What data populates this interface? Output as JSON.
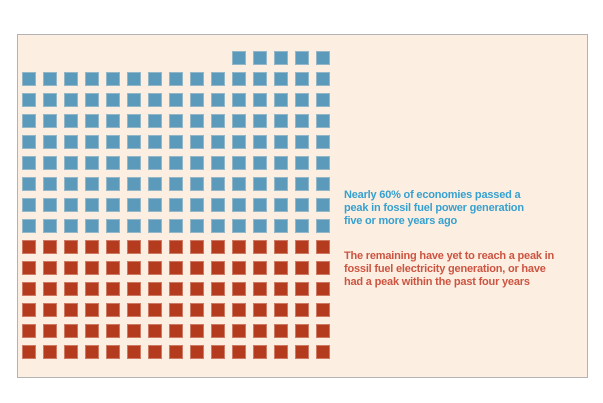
{
  "panel": {
    "background_color": "#FCEFE2",
    "border_color": "#B3B3B3"
  },
  "chart_data": {
    "type": "waffle",
    "title": "",
    "unit": "economies",
    "grid": {
      "columns": 15,
      "rows": 15,
      "total_units": 215
    },
    "series": [
      {
        "name": "passed-peak-5plus-years-ago",
        "count": 125,
        "share_label": "Nearly 60%",
        "color": "#5C9ABB"
      },
      {
        "name": "remaining-no-peak-or-recent-peak",
        "count": 90,
        "share_label": "remaining",
        "color": "#B53B1F"
      }
    ],
    "rows_spec": [
      {
        "offset": 10,
        "count": 5,
        "series": 0
      },
      {
        "offset": 0,
        "count": 15,
        "series": 0
      },
      {
        "offset": 0,
        "count": 15,
        "series": 0
      },
      {
        "offset": 0,
        "count": 15,
        "series": 0
      },
      {
        "offset": 0,
        "count": 15,
        "series": 0
      },
      {
        "offset": 0,
        "count": 15,
        "series": 0
      },
      {
        "offset": 0,
        "count": 15,
        "series": 0
      },
      {
        "offset": 0,
        "count": 15,
        "series": 0
      },
      {
        "offset": 0,
        "count": 15,
        "series": 0
      },
      {
        "offset": 0,
        "count": 15,
        "series": 1
      },
      {
        "offset": 0,
        "count": 15,
        "series": 1
      },
      {
        "offset": 0,
        "count": 15,
        "series": 1
      },
      {
        "offset": 0,
        "count": 15,
        "series": 1
      },
      {
        "offset": 0,
        "count": 15,
        "series": 1
      },
      {
        "offset": 0,
        "count": 15,
        "series": 1
      }
    ],
    "annotations": [
      {
        "id": "blue_note",
        "color": "#36A0CF",
        "text": "Nearly 60% of economies passed a peak in fossil fuel power generation five or more years ago",
        "lines": [
          "Nearly 60% of economies passed a",
          "peak in fossil fuel power generation",
          "five or more years ago"
        ]
      },
      {
        "id": "red_note",
        "color": "#CC5441",
        "text": "The remaining have yet to reach a peak in fossil fuel electricity generation, or have had a peak within the past four years",
        "lines": [
          "The remaining have yet to reach a peak in",
          "fossil fuel electricity generation, or have",
          "had a peak within the past four years"
        ]
      }
    ],
    "legend_position": "right",
    "grid_lines": false
  }
}
